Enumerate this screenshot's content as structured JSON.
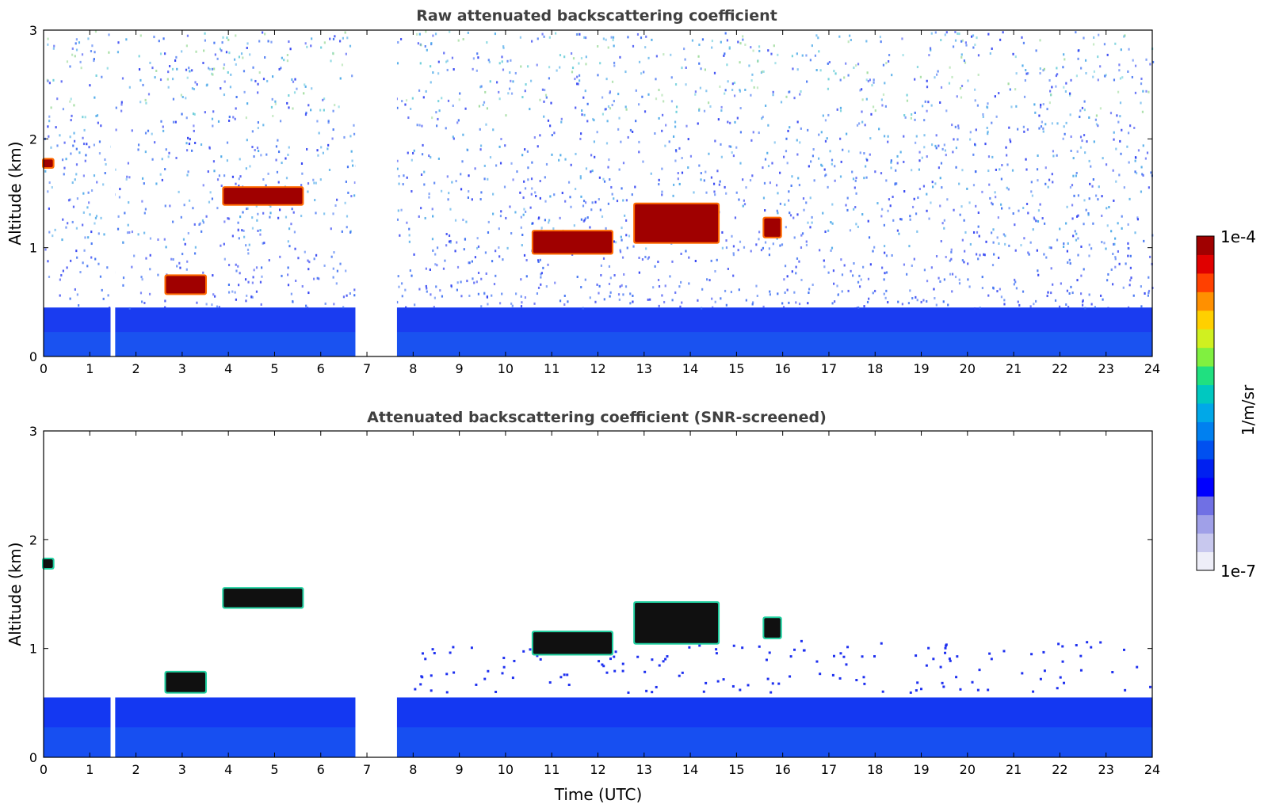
{
  "chart_data": [
    {
      "type": "heatmap",
      "title": "Raw attenuated backscattering coefficient",
      "xlabel": "",
      "ylabel": "Altitude (km)",
      "xlim": [
        0,
        24
      ],
      "ylim": [
        0,
        3
      ],
      "xticks": [
        "0",
        "1",
        "2",
        "3",
        "4",
        "5",
        "6",
        "7",
        "8",
        "9",
        "10",
        "11",
        "12",
        "13",
        "14",
        "15",
        "16",
        "17",
        "18",
        "19",
        "20",
        "21",
        "22",
        "23",
        "24"
      ],
      "yticks": [
        "0",
        "1",
        "2",
        "3"
      ],
      "data_gaps_hours": [
        [
          1.45,
          1.55
        ],
        [
          6.75,
          7.65
        ]
      ],
      "boundary_layer_top_km": 0.45,
      "cloud_layers": [
        {
          "start": 0.0,
          "end": 0.2,
          "base": 1.74,
          "top": 1.81
        },
        {
          "start": 2.65,
          "end": 3.5,
          "base": 0.58,
          "top": 0.74
        },
        {
          "start": 3.9,
          "end": 5.6,
          "base": 1.4,
          "top": 1.55
        },
        {
          "start": 10.6,
          "end": 12.3,
          "base": 0.95,
          "top": 1.15
        },
        {
          "start": 12.8,
          "end": 14.6,
          "base": 1.05,
          "top": 1.4
        },
        {
          "start": 15.6,
          "end": 15.95,
          "base": 1.1,
          "top": 1.27
        }
      ]
    },
    {
      "type": "heatmap",
      "title": "Attenuated backscattering coefficient (SNR-screened)",
      "xlabel": "Time (UTC)",
      "ylabel": "Altitude (km)",
      "xlim": [
        0,
        24
      ],
      "ylim": [
        0,
        3
      ],
      "xticks": [
        "0",
        "1",
        "2",
        "3",
        "4",
        "5",
        "6",
        "7",
        "8",
        "9",
        "10",
        "11",
        "12",
        "13",
        "14",
        "15",
        "16",
        "17",
        "18",
        "19",
        "20",
        "21",
        "22",
        "23",
        "24"
      ],
      "yticks": [
        "0",
        "1",
        "2",
        "3"
      ],
      "data_gaps_hours": [
        [
          1.45,
          1.55
        ],
        [
          6.75,
          7.65
        ]
      ],
      "boundary_layer_top_km": 0.55,
      "cloud_layers": [
        {
          "start": 0.0,
          "end": 0.2,
          "base": 1.74,
          "top": 1.82
        },
        {
          "start": 2.65,
          "end": 3.5,
          "base": 0.6,
          "top": 0.78
        },
        {
          "start": 3.9,
          "end": 5.6,
          "base": 1.38,
          "top": 1.55
        },
        {
          "start": 10.6,
          "end": 12.3,
          "base": 0.95,
          "top": 1.15
        },
        {
          "start": 12.8,
          "end": 14.6,
          "base": 1.05,
          "top": 1.42
        },
        {
          "start": 15.6,
          "end": 15.95,
          "base": 1.1,
          "top": 1.28
        }
      ]
    }
  ],
  "colorbar": {
    "label": "1/m/sr",
    "max_label": "1e-4",
    "min_label": "1e-7",
    "colors": [
      "#eeeef8",
      "#c8c8ee",
      "#a0a0e8",
      "#7070e4",
      "#0000ff",
      "#0020f0",
      "#0050f0",
      "#0080f0",
      "#00a8e8",
      "#00c8c0",
      "#20e080",
      "#80f040",
      "#d0f020",
      "#ffd000",
      "#ff9000",
      "#ff4000",
      "#e00000",
      "#a00000"
    ]
  }
}
